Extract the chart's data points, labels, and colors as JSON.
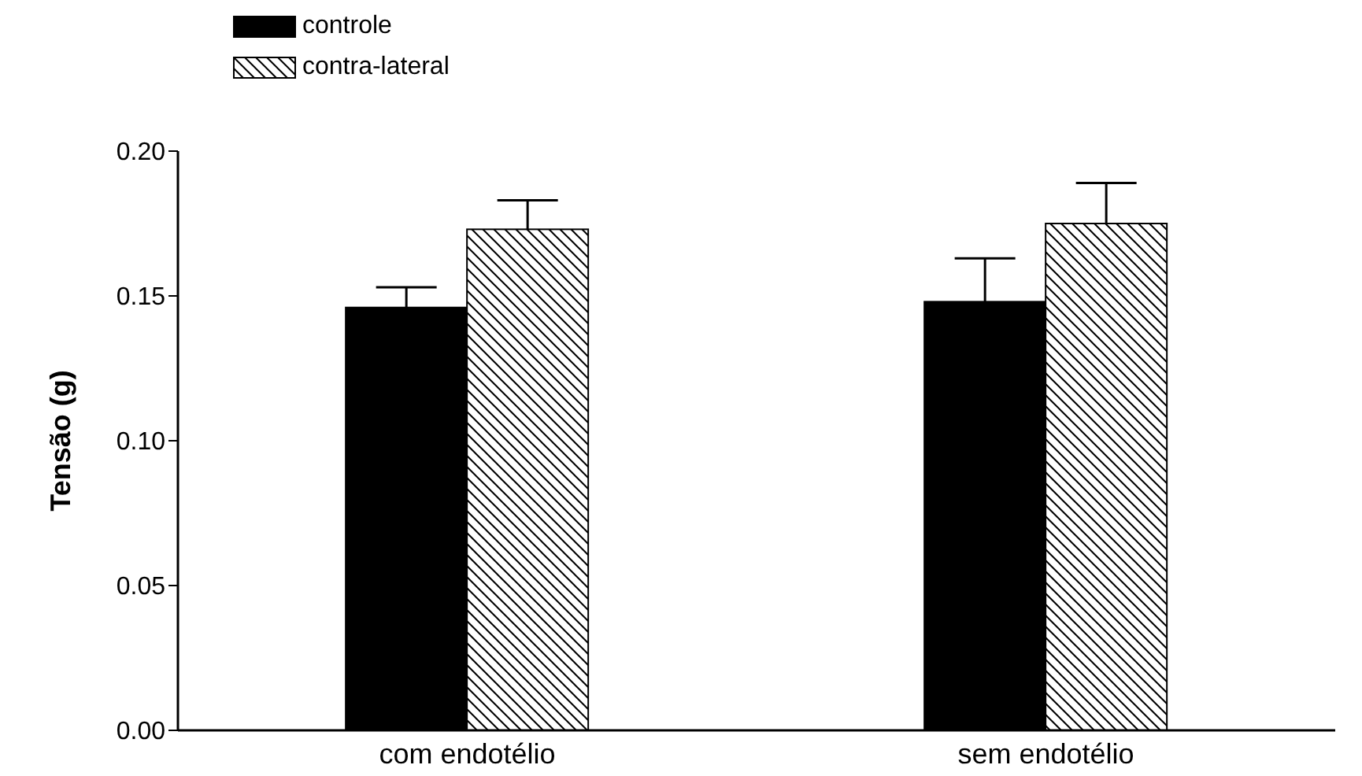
{
  "chart_data": {
    "type": "bar",
    "ylabel": "Tensão (g)",
    "categories": [
      "com endotélio",
      "sem endotélio"
    ],
    "series": [
      {
        "name": "controle",
        "color": "#000000",
        "values": [
          0.146,
          0.148
        ],
        "errors": [
          [
            0.146,
            0.153
          ],
          [
            0.148,
            0.163
          ]
        ]
      },
      {
        "name": "contra-lateral",
        "color": "#000000",
        "values": [
          0.173,
          0.175
        ],
        "errors": [
          [
            0.173,
            0.183
          ],
          [
            0.175,
            0.189
          ]
        ]
      }
    ],
    "ylim": [
      0,
      0.2
    ],
    "yticks": [
      {
        "value": 0,
        "label": "0.00"
      },
      {
        "value": 0.05,
        "label": "0.05"
      },
      {
        "value": 0.1,
        "label": "0.10"
      },
      {
        "value": 0.15,
        "label": "0.15"
      },
      {
        "value": 0.2,
        "label": "0.20"
      }
    ],
    "grid": false,
    "legend": "top left"
  }
}
